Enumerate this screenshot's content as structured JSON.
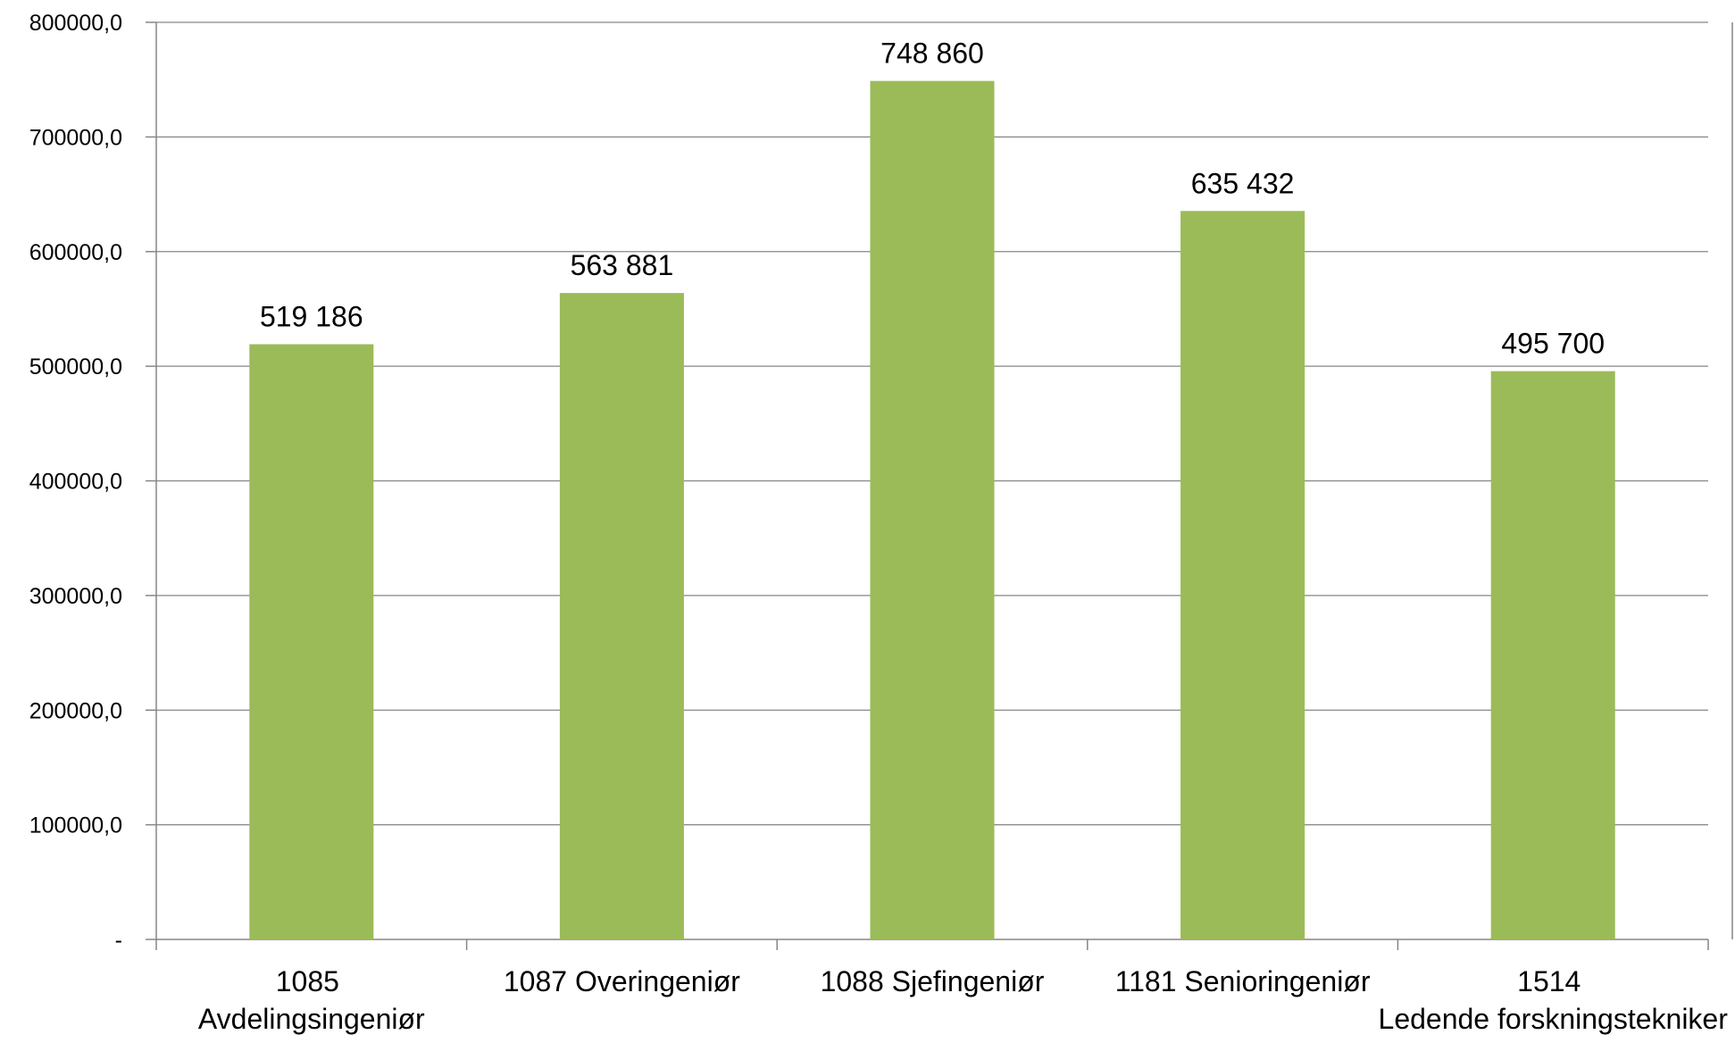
{
  "chart_data": {
    "type": "bar",
    "categories": [
      "1085 Avdelingsingeniør",
      "1087 Overingeniør",
      "1088 Sjefingeniør",
      "1181 Senioringeniør",
      "1514 Ledende forskningstekniker"
    ],
    "values": [
      519186,
      563881,
      748860,
      635432,
      495700
    ],
    "value_labels": [
      "519 186",
      "563 881",
      "748 860",
      "635 432",
      "495 700"
    ],
    "color": "#9bbb59",
    "ylim": [
      0,
      800000
    ],
    "yticks": [
      {
        "value": 0,
        "label": "-"
      },
      {
        "value": 100000,
        "label": "100000,0"
      },
      {
        "value": 200000,
        "label": "200000,0"
      },
      {
        "value": 300000,
        "label": "300000,0"
      },
      {
        "value": 400000,
        "label": "400000,0"
      },
      {
        "value": 500000,
        "label": "500000,0"
      },
      {
        "value": 600000,
        "label": "600000,0"
      },
      {
        "value": 700000,
        "label": "700000,0"
      },
      {
        "value": 800000,
        "label": "800000,0"
      }
    ],
    "grid": true
  }
}
